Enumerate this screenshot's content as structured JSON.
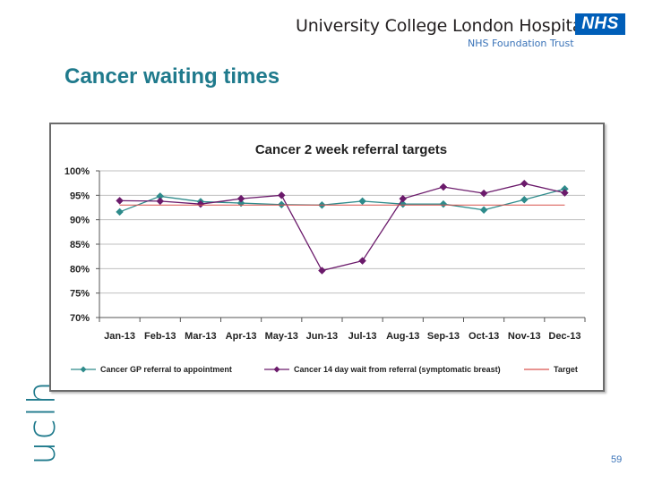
{
  "header": {
    "org_name": "University College London Hospitals",
    "org_sub": "NHS Foundation Trust",
    "nhs_logo_text": "NHS"
  },
  "page_title": "Cancer waiting times",
  "side_brand": "uclh",
  "page_number": "59",
  "colors": {
    "title": "#1f7a8c",
    "series_gp": "#2e8b8b",
    "series_breast": "#6b1a6b",
    "target": "#d9534f"
  },
  "chart_data": {
    "type": "line",
    "title": "Cancer 2 week referral targets",
    "xlabel": "",
    "ylabel": "",
    "ylim": [
      70,
      100
    ],
    "yticks": [
      "70%",
      "75%",
      "80%",
      "85%",
      "90%",
      "95%",
      "100%"
    ],
    "ytick_values": [
      70,
      75,
      80,
      85,
      90,
      95,
      100
    ],
    "categories": [
      "Jan-13",
      "Feb-13",
      "Mar-13",
      "Apr-13",
      "May-13",
      "Jun-13",
      "Jul-13",
      "Aug-13",
      "Sep-13",
      "Oct-13",
      "Nov-13",
      "Dec-13"
    ],
    "series": [
      {
        "name": "Cancer GP referral to appointment",
        "marker": "diamond",
        "values": [
          91.6,
          94.8,
          93.7,
          93.4,
          93.1,
          93.0,
          93.8,
          93.2,
          93.2,
          92.0,
          94.1,
          96.3
        ]
      },
      {
        "name": "Cancer 14 day wait from referral (symptomatic breast)",
        "marker": "diamond",
        "values": [
          93.9,
          93.8,
          93.2,
          94.3,
          95.0,
          79.6,
          81.6,
          94.3,
          96.7,
          95.4,
          97.4,
          95.5
        ]
      },
      {
        "name": "Target",
        "marker": "none",
        "values": [
          93,
          93,
          93,
          93,
          93,
          93,
          93,
          93,
          93,
          93,
          93,
          93
        ]
      }
    ],
    "legend_position": "bottom",
    "grid": true
  }
}
